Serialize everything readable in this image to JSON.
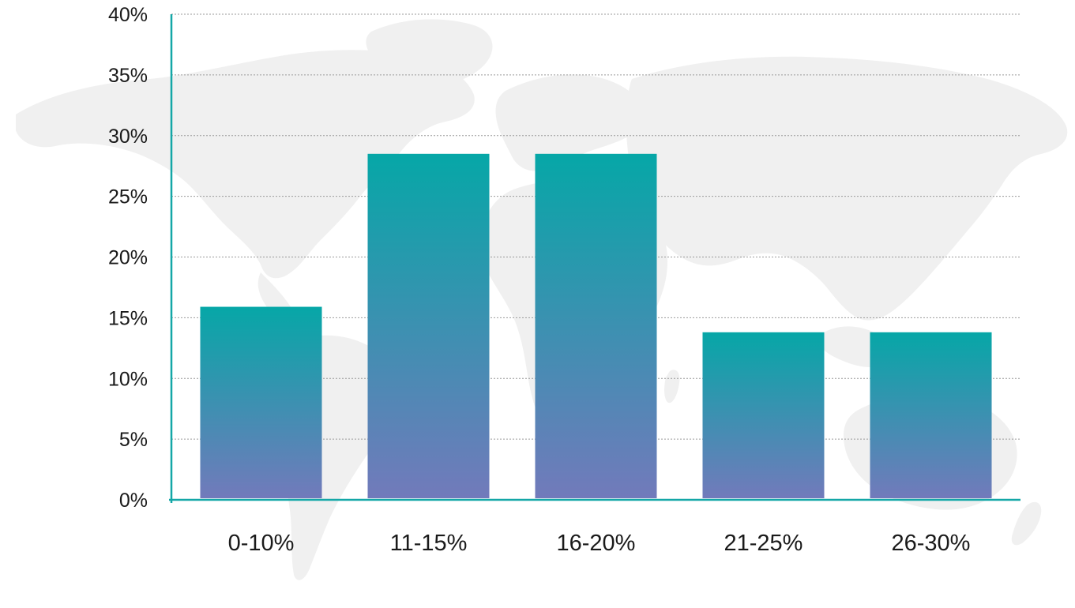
{
  "chart_data": {
    "type": "bar",
    "categories": [
      "0-10%",
      "11-15%",
      "16-20%",
      "21-25%",
      "26-30%"
    ],
    "values": [
      15.9,
      28.5,
      28.5,
      13.8,
      13.8
    ],
    "ylim": [
      0,
      40
    ],
    "yticks": [
      "0%",
      "5%",
      "10%",
      "15%",
      "20%",
      "25%",
      "30%",
      "35%",
      "40%"
    ],
    "grid": true,
    "legend": "none",
    "colors": {
      "bar_top": "#06a7a7",
      "bar_bottom": "#727abb",
      "axis": "#14a7a7",
      "grid": "#9a9a9a",
      "map": "#f0f0f0"
    }
  }
}
